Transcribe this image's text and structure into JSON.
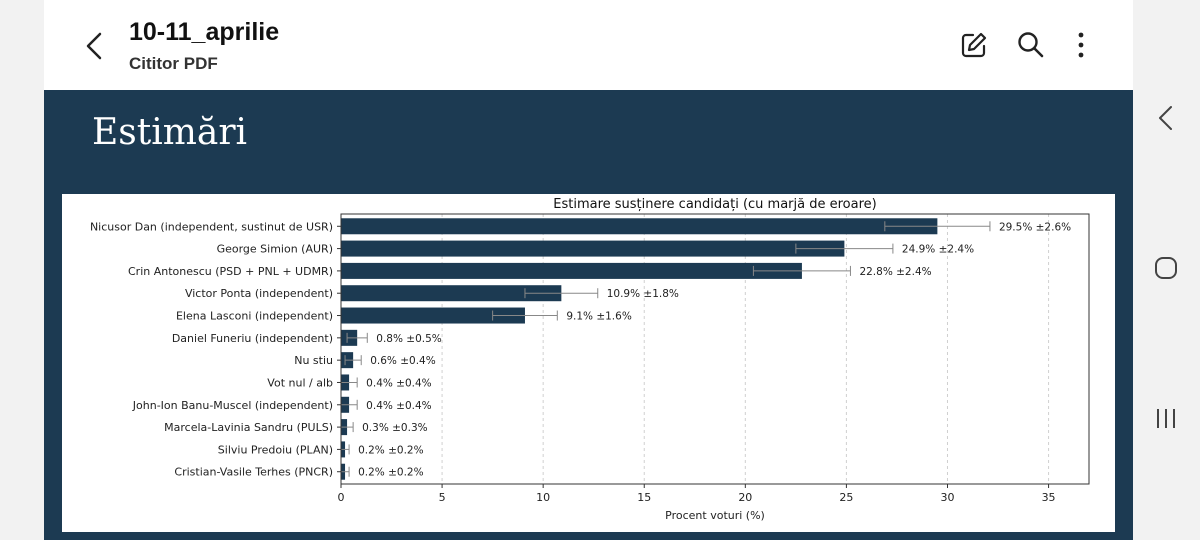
{
  "header": {
    "title": "10-11_aprilie",
    "subtitle": "Cititor PDF",
    "icons": [
      "back-icon",
      "edit-icon",
      "search-icon",
      "more-icon"
    ]
  },
  "page": {
    "heading": "Estimări",
    "background_color": "#1c3a52"
  },
  "nav": {
    "icons": [
      "chevron-left-icon",
      "home-icon",
      "recents-icon"
    ]
  },
  "chart_data": {
    "type": "bar",
    "orientation": "horizontal",
    "title": "Estimare susținere candidați (cu marjă de eroare)",
    "xlabel": "Procent voturi (%)",
    "ylabel": "",
    "xlim": [
      0,
      37
    ],
    "xticks": [
      0,
      5,
      10,
      15,
      20,
      25,
      30,
      35
    ],
    "grid": "vertical dashed",
    "bar_color": "#1c3a52",
    "categories": [
      "Nicusor Dan (independent, sustinut de USR)",
      "George Simion (AUR)",
      "Crin Antonescu (PSD + PNL + UDMR)",
      "Victor Ponta (independent)",
      "Elena Lasconi (independent)",
      "Daniel Funeriu (independent)",
      "Nu stiu",
      "Vot nul / alb",
      "John-Ion Banu-Muscel (independent)",
      "Marcela-Lavinia Sandru (PULS)",
      "Silviu Predoiu (PLAN)",
      "Cristian-Vasile Terhes (PNCR)"
    ],
    "values": [
      29.5,
      24.9,
      22.8,
      10.9,
      9.1,
      0.8,
      0.6,
      0.4,
      0.4,
      0.3,
      0.2,
      0.2
    ],
    "errors": [
      2.6,
      2.4,
      2.4,
      1.8,
      1.6,
      0.5,
      0.4,
      0.4,
      0.4,
      0.3,
      0.2,
      0.2
    ],
    "data_labels": [
      "29.5% ±2.6%",
      "24.9% ±2.4%",
      "22.8% ±2.4%",
      "10.9% ±1.8%",
      "9.1% ±1.6%",
      "0.8% ±0.5%",
      "0.6% ±0.4%",
      "0.4% ±0.4%",
      "0.4% ±0.4%",
      "0.3% ±0.3%",
      "0.2% ±0.2%",
      "0.2% ±0.2%"
    ]
  }
}
